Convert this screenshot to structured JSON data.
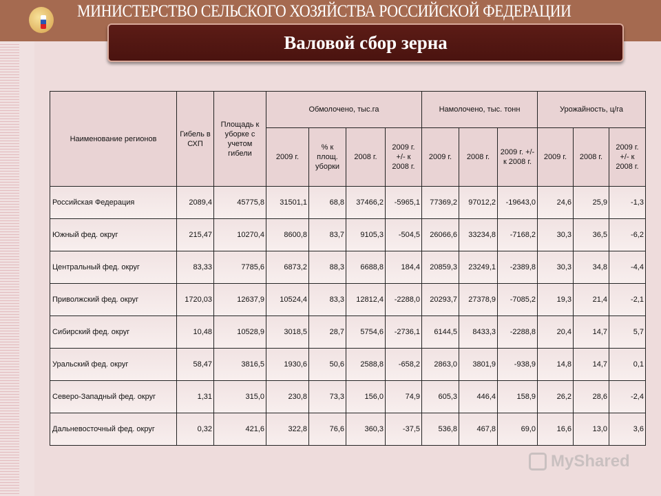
{
  "header": {
    "ministry": "МИНИСТЕРСТВО СЕЛЬСКОГО ХОЗЯЙСТВА РОССИЙСКОЙ ФЕДЕРАЦИИ",
    "title": "Валовой сбор зерна"
  },
  "table": {
    "col_region": "Наименование регионов",
    "col_loss": "Гибель в СХП",
    "col_area": "Площадь к уборке с учетом гибели",
    "groups": [
      "Обмолочено, тыс.га",
      "Намолочено, тыс. тонн",
      "Урожайность, ц/га"
    ],
    "subheaders": [
      "2009 г.",
      "% к площ. уборки",
      "2008 г.",
      "2009 г. +/- к 2008 г.",
      "2009 г.",
      "2008 г.",
      "2009 г. +/- к 2008 г.",
      "2009 г.",
      "2008 г.",
      "2009 г. +/- к 2008 г."
    ],
    "rows": [
      [
        "Российская Федерация",
        "2089,4",
        "45775,8",
        "31501,1",
        "68,8",
        "37466,2",
        "-5965,1",
        "77369,2",
        "97012,2",
        "-19643,0",
        "24,6",
        "25,9",
        "-1,3"
      ],
      [
        "Южный фед. округ",
        "215,47",
        "10270,4",
        "8600,8",
        "83,7",
        "9105,3",
        "-504,5",
        "26066,6",
        "33234,8",
        "-7168,2",
        "30,3",
        "36,5",
        "-6,2"
      ],
      [
        "Центральный фед. округ",
        "83,33",
        "7785,6",
        "6873,2",
        "88,3",
        "6688,8",
        "184,4",
        "20859,3",
        "23249,1",
        "-2389,8",
        "30,3",
        "34,8",
        "-4,4"
      ],
      [
        "Приволжский фед. округ",
        "1720,03",
        "12637,9",
        "10524,4",
        "83,3",
        "12812,4",
        "-2288,0",
        "20293,7",
        "27378,9",
        "-7085,2",
        "19,3",
        "21,4",
        "-2,1"
      ],
      [
        "Сибирский фед. округ",
        "10,48",
        "10528,9",
        "3018,5",
        "28,7",
        "5754,6",
        "-2736,1",
        "6144,5",
        "8433,3",
        "-2288,8",
        "20,4",
        "14,7",
        "5,7"
      ],
      [
        "Уральский фед. округ",
        "58,47",
        "3816,5",
        "1930,6",
        "50,6",
        "2588,8",
        "-658,2",
        "2863,0",
        "3801,9",
        "-938,9",
        "14,8",
        "14,7",
        "0,1"
      ],
      [
        "Северо-Западный фед. округ",
        "1,31",
        "315,0",
        "230,8",
        "73,3",
        "156,0",
        "74,9",
        "605,3",
        "446,4",
        "158,9",
        "26,2",
        "28,6",
        "-2,4"
      ],
      [
        "Дальневосточный фед. округ",
        "0,32",
        "421,6",
        "322,8",
        "76,6",
        "360,3",
        "-37,5",
        "536,8",
        "467,8",
        "69,0",
        "16,6",
        "13,0",
        "3,6"
      ]
    ]
  },
  "watermark": "MyShared"
}
